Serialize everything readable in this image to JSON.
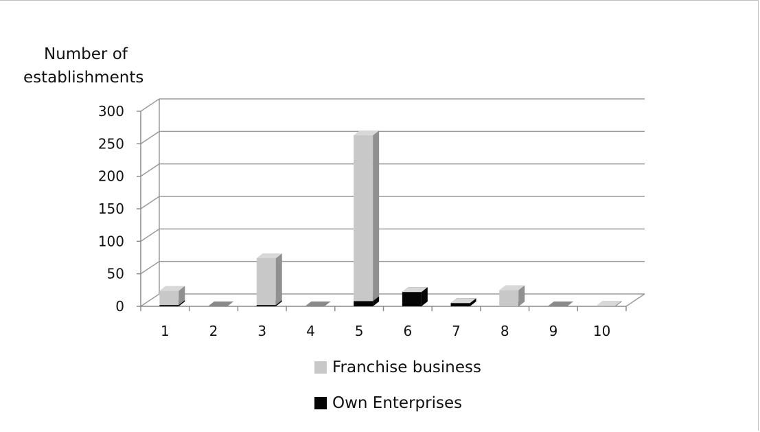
{
  "chart_data": {
    "type": "bar",
    "title": "",
    "ylabel_lines": [
      "Number of",
      "establishments"
    ],
    "xlabel": "",
    "categories": [
      "1",
      "2",
      "3",
      "4",
      "5",
      "6",
      "7",
      "8",
      "9",
      "10"
    ],
    "ylim": [
      0,
      300
    ],
    "yticks": [
      0,
      50,
      100,
      150,
      200,
      250,
      300
    ],
    "grid": true,
    "legend_position": "bottom",
    "series": [
      {
        "name": "Franchise business",
        "color": "#c8c8c8",
        "values": [
          22,
          0,
          72,
          0,
          255,
          0,
          0,
          25,
          0,
          1
        ]
      },
      {
        "name": "Own Enterprises",
        "color": "#050505",
        "values": [
          2,
          0,
          2,
          0,
          8,
          22,
          5,
          0,
          0,
          0
        ]
      }
    ]
  }
}
